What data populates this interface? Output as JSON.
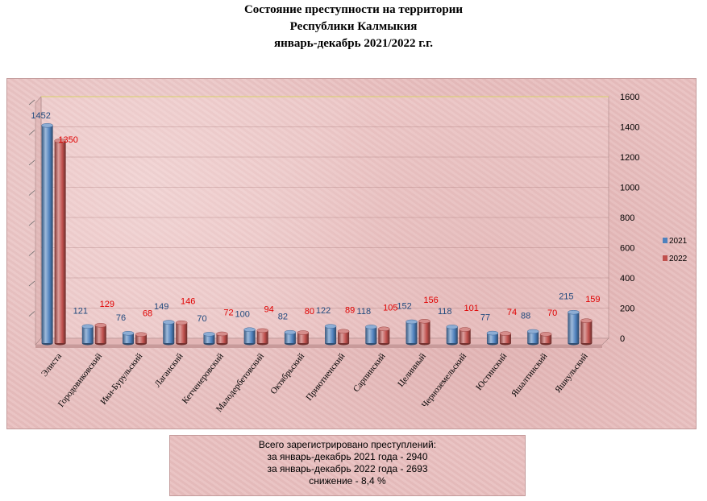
{
  "title_lines": [
    "Состояние преступности на территории",
    "Республики Калмыкия",
    "январь-декабрь 2021/2022 г.г."
  ],
  "summary": {
    "line1": "Всего зарегистрировано преступлений:",
    "line2": "за январь-декабрь 2021 года - 2940",
    "line3": "за январь-декабрь 2022 года - 2693",
    "line4": "снижение  - 8,4 %"
  },
  "colors": {
    "series_2021": "#4f81bd",
    "series_2022": "#c0504d",
    "label_2021": "#1f497d",
    "label_2022": "#e00000",
    "panel_bg": "#e8c0c0"
  },
  "chart_data": {
    "type": "bar",
    "categories": [
      "Элиста",
      "Городовиковский",
      "Ики-Бурульский",
      "Лаганский",
      "Кетченеровский",
      "Малодербетовский",
      "Октябрьский",
      "Приютненский",
      "Сарпинский",
      "Целинный",
      "Черноземельский",
      "Юстинский",
      "Яшалтинский",
      "Яшкульский"
    ],
    "series": [
      {
        "name": "2021",
        "values": [
          1452,
          121,
          76,
          149,
          70,
          100,
          82,
          122,
          118,
          152,
          118,
          77,
          88,
          215
        ]
      },
      {
        "name": "2022",
        "values": [
          1350,
          129,
          68,
          146,
          72,
          94,
          80,
          89,
          105,
          156,
          101,
          74,
          70,
          159
        ]
      }
    ],
    "y_ticks": [
      "0",
      "200",
      "400",
      "600",
      "800",
      "1000",
      "1200",
      "1400",
      "1600"
    ],
    "ylim": [
      0,
      1600
    ],
    "legend_position": "right",
    "grid": true,
    "view": "3d"
  }
}
